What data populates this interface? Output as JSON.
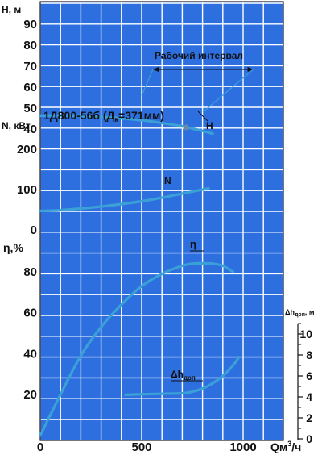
{
  "chart_data": {
    "type": "line",
    "model": "1Д800-56б (Д",
    "model_sub": "к",
    "model_suffix": "=371мм)",
    "x_axis": {
      "label": "Qм",
      "label_sup": "3",
      "label_unit": "/ч",
      "range": [
        0,
        1000
      ],
      "ticks": [
        0,
        500,
        1000
      ],
      "tick_labels": [
        "0",
        "500",
        "1000"
      ]
    },
    "working_interval": {
      "label": "Рабочий интервал",
      "x": [
        500,
        1050
      ]
    },
    "panels": [
      {
        "id": "head",
        "ylabel": "H, м",
        "ylim": [
          35,
          90
        ],
        "ticks": [
          40,
          50,
          60,
          70,
          80,
          90
        ],
        "tick_labels": [
          "40",
          "50",
          "60",
          "70",
          "80",
          "90"
        ],
        "series": [
          {
            "name": "H",
            "x": [
              0,
              100,
              200,
              300,
              400,
              500,
              600,
              700,
              800,
              850
            ],
            "y": [
              46.4,
              46.5,
              46.3,
              45.8,
              45.1,
              44.2,
              42.9,
              41.3,
              39.1,
              37.8
            ]
          }
        ],
        "marker": {
          "x": 720,
          "y": 40.8
        }
      },
      {
        "id": "power",
        "ylabel": "N, кВт",
        "ylim": [
          0,
          230
        ],
        "ticks": [
          0,
          100,
          200
        ],
        "tick_labels": [
          "0",
          "100",
          "200"
        ],
        "series": [
          {
            "name": "N",
            "x": [
              0,
              100,
              200,
              300,
              400,
              500,
              600,
              700,
              800,
              830
            ],
            "y": [
              47,
              49,
              53,
              58,
              64,
              71,
              80,
              90,
              100,
              103
            ]
          }
        ]
      },
      {
        "id": "efficiency",
        "ylabel": "η,%",
        "ylim": [
          0,
          95
        ],
        "ticks": [
          20,
          40,
          60,
          80
        ],
        "tick_labels": [
          "20",
          "40",
          "60",
          "80"
        ],
        "series": [
          {
            "name": "η",
            "x": [
              0,
              100,
              200,
              300,
              400,
              500,
              600,
              700,
              750,
              800,
              850,
              900,
              950
            ],
            "y": [
              0,
              20,
              39,
              53,
              64,
              73,
              79,
              83,
              84,
              84.2,
              84,
              83,
              80
            ]
          }
        ]
      },
      {
        "id": "npsh",
        "ylabel": "Δh",
        "ylabel_sub": "доп",
        "ylabel_suffix": ", м",
        "axis": "right",
        "ylim": [
          0,
          12
        ],
        "ticks": [
          0,
          2,
          4,
          6,
          8,
          10
        ],
        "tick_labels": [
          "0",
          "2",
          "4",
          "6",
          "8",
          "10"
        ],
        "series": [
          {
            "name": "Δh",
            "name_sub": "доп",
            "x": [
              420,
              500,
              600,
              700,
              750,
              800,
              850,
              900,
              950,
              980
            ],
            "y": [
              4.2,
              4.25,
              4.3,
              4.35,
              4.5,
              4.8,
              5.3,
              6.0,
              7.0,
              7.8
            ]
          }
        ]
      }
    ]
  }
}
